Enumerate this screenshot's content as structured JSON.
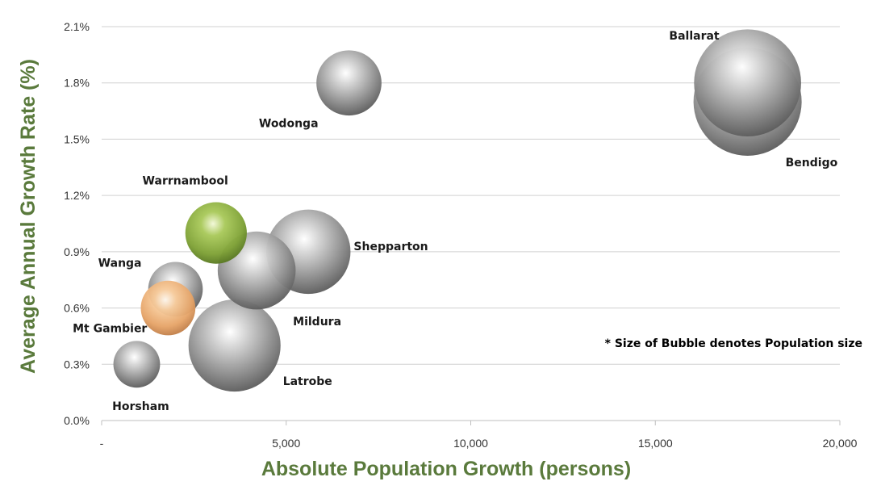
{
  "chart_data": {
    "type": "bubble",
    "xlabel": "Absolute Population Growth (persons)",
    "ylabel": "Average Annual Growth Rate (%)",
    "xlim": [
      0,
      20000
    ],
    "ylim": [
      0,
      2.1
    ],
    "x_ticks": [
      {
        "value": 0,
        "label": "-"
      },
      {
        "value": 5000,
        "label": "5,000"
      },
      {
        "value": 10000,
        "label": "10,000"
      },
      {
        "value": 15000,
        "label": "15,000"
      },
      {
        "value": 20000,
        "label": "20,000"
      }
    ],
    "y_ticks": [
      {
        "value": 0,
        "label": "0.0%"
      },
      {
        "value": 0.3,
        "label": "0.3%"
      },
      {
        "value": 0.6,
        "label": "0.6%"
      },
      {
        "value": 0.9,
        "label": "0.9%"
      },
      {
        "value": 1.2,
        "label": "1.2%"
      },
      {
        "value": 1.5,
        "label": "1.5%"
      },
      {
        "value": 1.8,
        "label": "1.8%"
      },
      {
        "value": 2.1,
        "label": "2.1%"
      }
    ],
    "grid": "horizontal",
    "note": "* Size of Bubble denotes Population size",
    "colors": {
      "default": "#9a9a9a",
      "Warrnambool": "#8db33e",
      "Mt Gambier": "#f0b27a",
      "grid": "#d0d0d0",
      "axis_title": "#5a7a3c"
    },
    "points": [
      {
        "name": "Ballarat",
        "x": 17500,
        "y": 1.8,
        "size": 100,
        "label_pos": "above-left"
      },
      {
        "name": "Bendigo",
        "x": 17500,
        "y": 1.7,
        "size": 102,
        "label_pos": "below-right"
      },
      {
        "name": "Wodonga",
        "x": 6700,
        "y": 1.8,
        "size": 37,
        "label_pos": "below-left"
      },
      {
        "name": "Shepparton",
        "x": 5600,
        "y": 0.9,
        "size": 62,
        "label_pos": "right"
      },
      {
        "name": "Mildura",
        "x": 4200,
        "y": 0.8,
        "size": 53,
        "label_pos": "below-right"
      },
      {
        "name": "Latrobe",
        "x": 3600,
        "y": 0.4,
        "size": 74,
        "label_pos": "below-right"
      },
      {
        "name": "Warrnambool",
        "x": 3100,
        "y": 1.0,
        "size": 33,
        "label_pos": "above-left"
      },
      {
        "name": "Wanga",
        "x": 2000,
        "y": 0.7,
        "size": 26,
        "label_pos": "above-left"
      },
      {
        "name": "Mt Gambier",
        "x": 1800,
        "y": 0.6,
        "size": 26,
        "label_pos": "below-left"
      },
      {
        "name": "Horsham",
        "x": 950,
        "y": 0.3,
        "size": 19,
        "label_pos": "below"
      }
    ]
  }
}
